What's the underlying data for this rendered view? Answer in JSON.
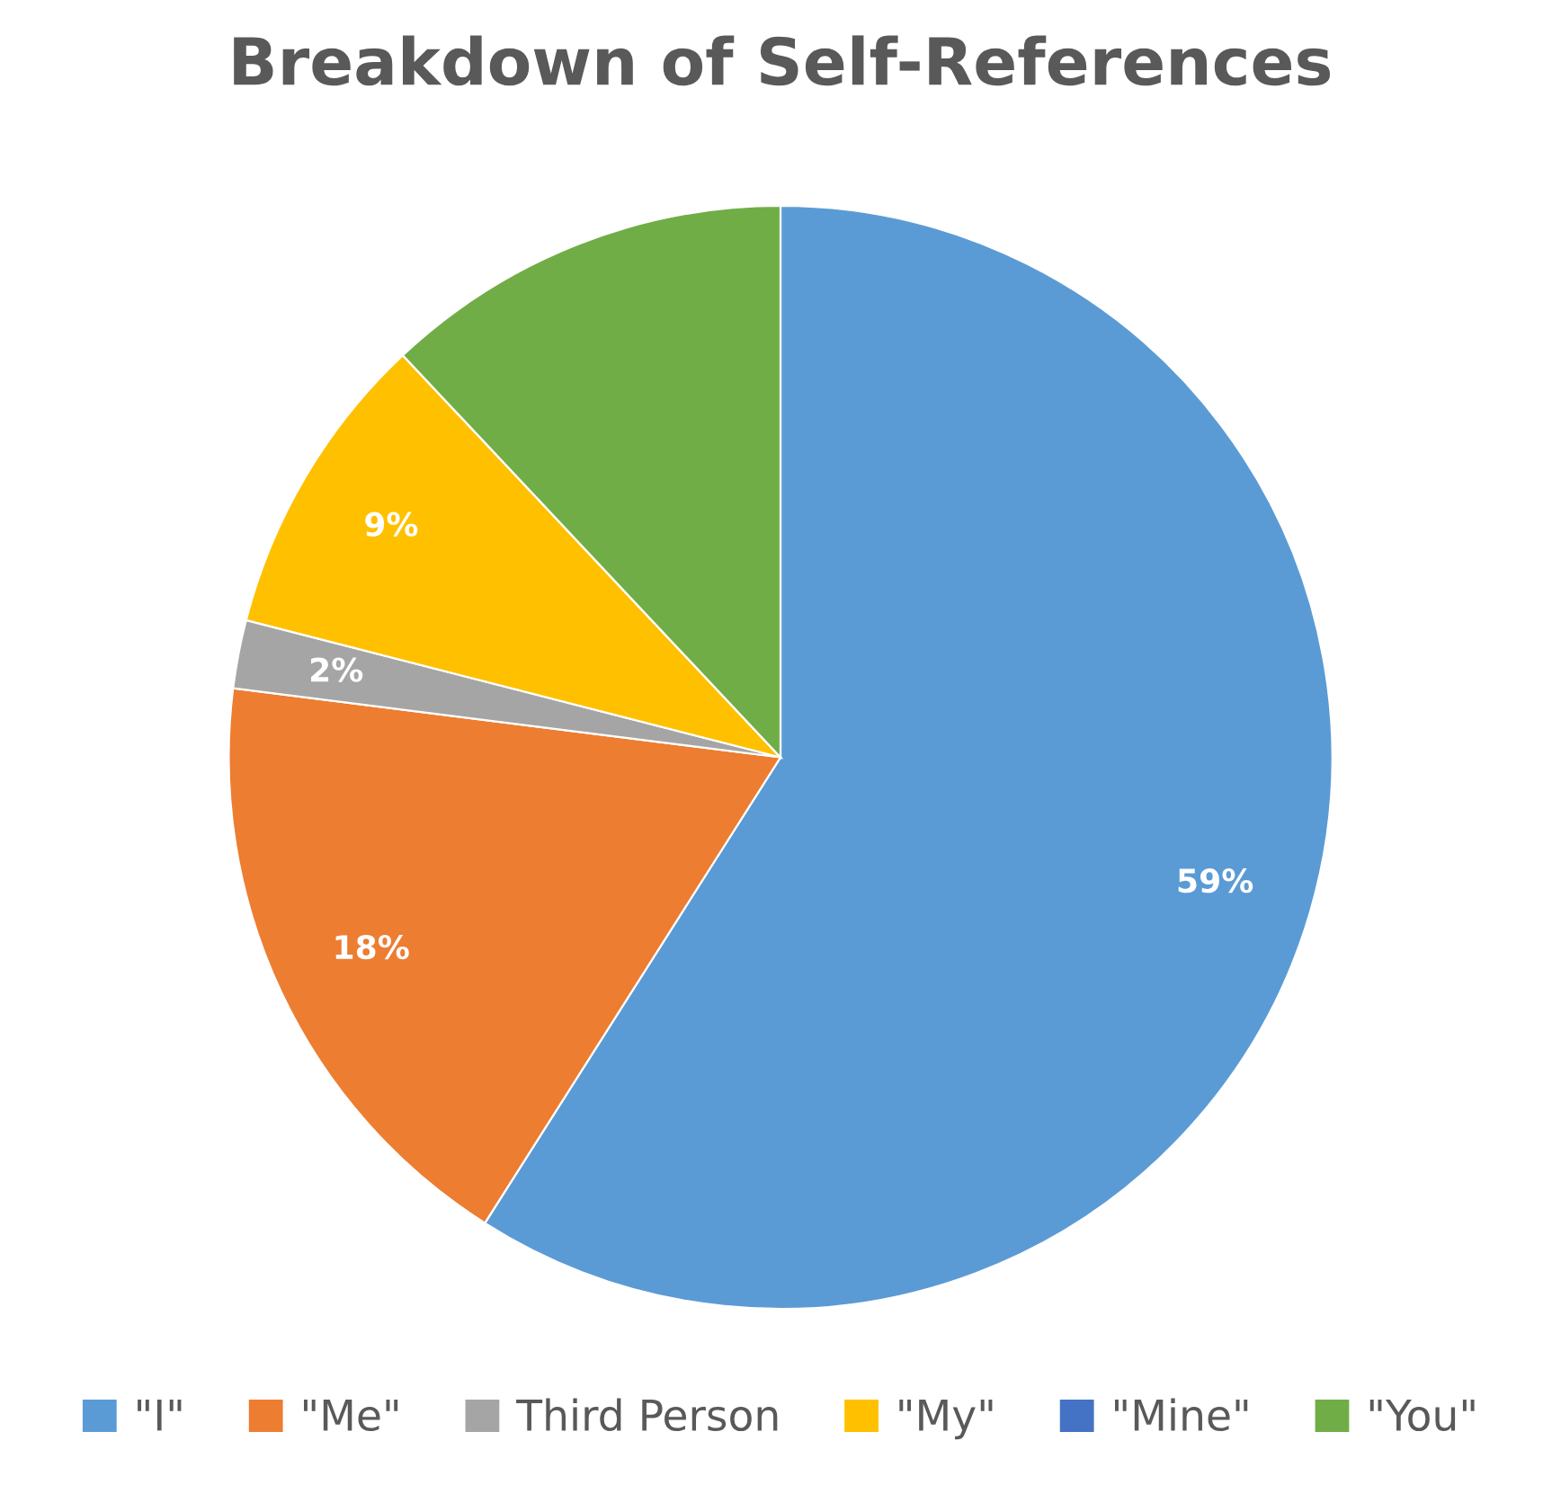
{
  "chart_data": {
    "type": "pie",
    "title": "Breakdown of Self-References",
    "categories": [
      "\"I\"",
      "\"Me\"",
      "Third Person",
      "\"My\"",
      "\"Mine\"",
      "\"You\""
    ],
    "values": [
      59,
      18,
      2,
      9,
      0,
      12
    ],
    "value_labels": [
      "59%",
      "18%",
      "2%",
      "9%",
      null,
      null
    ],
    "colors": [
      "#5b9bd5",
      "#ed7d31",
      "#a5a5a5",
      "#ffc000",
      "#4472c4",
      "#70ad47"
    ],
    "legend": "bottom"
  }
}
